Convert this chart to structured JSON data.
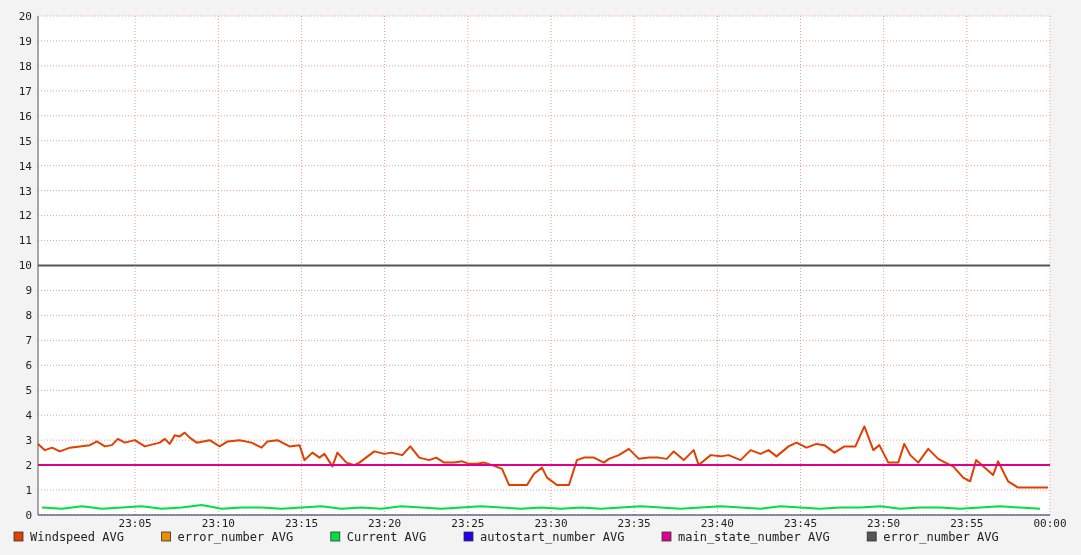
{
  "chart_data": {
    "type": "line",
    "xlim": [
      22.986,
      24
    ],
    "xticks": [
      {
        "value": 23.0833,
        "label": "23:05"
      },
      {
        "value": 23.1667,
        "label": "23:10"
      },
      {
        "value": 23.25,
        "label": "23:15"
      },
      {
        "value": 23.3333,
        "label": "23:20"
      },
      {
        "value": 23.4167,
        "label": "23:25"
      },
      {
        "value": 23.5,
        "label": "23:30"
      },
      {
        "value": 23.5833,
        "label": "23:35"
      },
      {
        "value": 23.6667,
        "label": "23:40"
      },
      {
        "value": 23.75,
        "label": "23:45"
      },
      {
        "value": 23.8333,
        "label": "23:50"
      },
      {
        "value": 23.9167,
        "label": "23:55"
      },
      {
        "value": 24,
        "label": "00:00"
      }
    ],
    "ylim": [
      0,
      20
    ],
    "yticks": [
      0,
      1,
      2,
      3,
      4,
      5,
      6,
      7,
      8,
      9,
      10,
      11,
      12,
      13,
      14,
      15,
      16,
      17,
      18,
      19,
      20
    ],
    "grid": true,
    "legend": "bottom",
    "series": [
      {
        "name": "Windspeed AVG",
        "color": "#e04000",
        "x": [
          22.986,
          22.993,
          23,
          23.008,
          23.018,
          23.028,
          23.038,
          23.045,
          23.053,
          23.06,
          23.066,
          23.073,
          23.083,
          23.093,
          23.103,
          23.108,
          23.113,
          23.118,
          23.123,
          23.128,
          23.133,
          23.138,
          23.145,
          23.158,
          23.168,
          23.176,
          23.188,
          23.2,
          23.21,
          23.216,
          23.226,
          23.238,
          23.248,
          23.253,
          23.261,
          23.268,
          23.273,
          23.281,
          23.286,
          23.295,
          23.303,
          23.308,
          23.318,
          23.323,
          23.333,
          23.34,
          23.351,
          23.359,
          23.368,
          23.378,
          23.385,
          23.393,
          23.403,
          23.411,
          23.418,
          23.426,
          23.433,
          23.441,
          23.451,
          23.458,
          23.468,
          23.476,
          23.483,
          23.491,
          23.496,
          23.506,
          23.518,
          23.526,
          23.533,
          23.543,
          23.553,
          23.558,
          23.568,
          23.578,
          23.588,
          23.598,
          23.608,
          23.616,
          23.623,
          23.633,
          23.643,
          23.648,
          23.66,
          23.67,
          23.678,
          23.69,
          23.7,
          23.71,
          23.718,
          23.726,
          23.738,
          23.746,
          23.756,
          23.766,
          23.774,
          23.784,
          23.794,
          23.805,
          23.814,
          23.823,
          23.829,
          23.838,
          23.848,
          23.854,
          23.86,
          23.868,
          23.878,
          23.888,
          23.895,
          23.903,
          23.913,
          23.92,
          23.926,
          23.933,
          23.943,
          23.948,
          23.958,
          23.968,
          23.998
        ],
        "values": [
          2.85,
          2.6,
          2.7,
          2.55,
          2.7,
          2.75,
          2.8,
          2.95,
          2.75,
          2.8,
          3.05,
          2.9,
          3.0,
          2.75,
          2.85,
          2.9,
          3.05,
          2.85,
          3.2,
          3.15,
          3.3,
          3.1,
          2.9,
          3.0,
          2.75,
          2.95,
          3.0,
          2.9,
          2.7,
          2.95,
          3.0,
          2.75,
          2.8,
          2.2,
          2.5,
          2.3,
          2.45,
          1.95,
          2.5,
          2.1,
          2.0,
          2.1,
          2.4,
          2.55,
          2.45,
          2.5,
          2.4,
          2.75,
          2.3,
          2.2,
          2.3,
          2.1,
          2.1,
          2.15,
          2.05,
          2.05,
          2.1,
          2.0,
          1.85,
          1.2,
          1.2,
          1.2,
          1.65,
          1.9,
          1.5,
          1.2,
          1.2,
          2.2,
          2.3,
          2.3,
          2.1,
          2.25,
          2.4,
          2.65,
          2.25,
          2.3,
          2.3,
          2.25,
          2.55,
          2.2,
          2.6,
          2.0,
          2.4,
          2.35,
          2.4,
          2.2,
          2.6,
          2.45,
          2.6,
          2.35,
          2.75,
          2.9,
          2.7,
          2.85,
          2.8,
          2.5,
          2.75,
          2.75,
          3.55,
          2.6,
          2.8,
          2.1,
          2.1,
          2.85,
          2.4,
          2.1,
          2.65,
          2.25,
          2.1,
          1.95,
          1.5,
          1.35,
          2.2,
          1.95,
          1.6,
          2.15,
          1.35,
          1.1,
          1.1
        ]
      },
      {
        "name": "error_number AVG",
        "color": "#ea8f00"
      },
      {
        "name": "Current AVG",
        "color": "#00e040",
        "x": [
          22.99,
          23.01,
          23.03,
          23.05,
          23.07,
          23.09,
          23.11,
          23.13,
          23.15,
          23.17,
          23.19,
          23.21,
          23.23,
          23.25,
          23.27,
          23.29,
          23.31,
          23.33,
          23.35,
          23.37,
          23.39,
          23.41,
          23.43,
          23.45,
          23.47,
          23.49,
          23.51,
          23.53,
          23.55,
          23.57,
          23.59,
          23.61,
          23.63,
          23.65,
          23.67,
          23.69,
          23.71,
          23.73,
          23.75,
          23.77,
          23.79,
          23.81,
          23.83,
          23.85,
          23.87,
          23.89,
          23.91,
          23.93,
          23.95,
          23.97,
          23.99
        ],
        "values": [
          0.3,
          0.25,
          0.35,
          0.25,
          0.3,
          0.35,
          0.25,
          0.3,
          0.4,
          0.25,
          0.3,
          0.3,
          0.25,
          0.3,
          0.35,
          0.25,
          0.3,
          0.25,
          0.35,
          0.3,
          0.25,
          0.3,
          0.35,
          0.3,
          0.25,
          0.3,
          0.25,
          0.3,
          0.25,
          0.3,
          0.35,
          0.3,
          0.25,
          0.3,
          0.35,
          0.3,
          0.25,
          0.35,
          0.3,
          0.25,
          0.3,
          0.3,
          0.35,
          0.25,
          0.3,
          0.3,
          0.25,
          0.3,
          0.35,
          0.3,
          0.25
        ]
      },
      {
        "name": "autostart_number AVG",
        "color": "#2200ee"
      },
      {
        "name": "main_state_number AVG",
        "color": "#e00090",
        "x": [
          22.986,
          24
        ],
        "values": [
          2,
          2
        ]
      },
      {
        "name": "error_number AVG",
        "color": "#555555",
        "x": [
          22.986,
          24
        ],
        "values": [
          10,
          10
        ]
      }
    ]
  }
}
